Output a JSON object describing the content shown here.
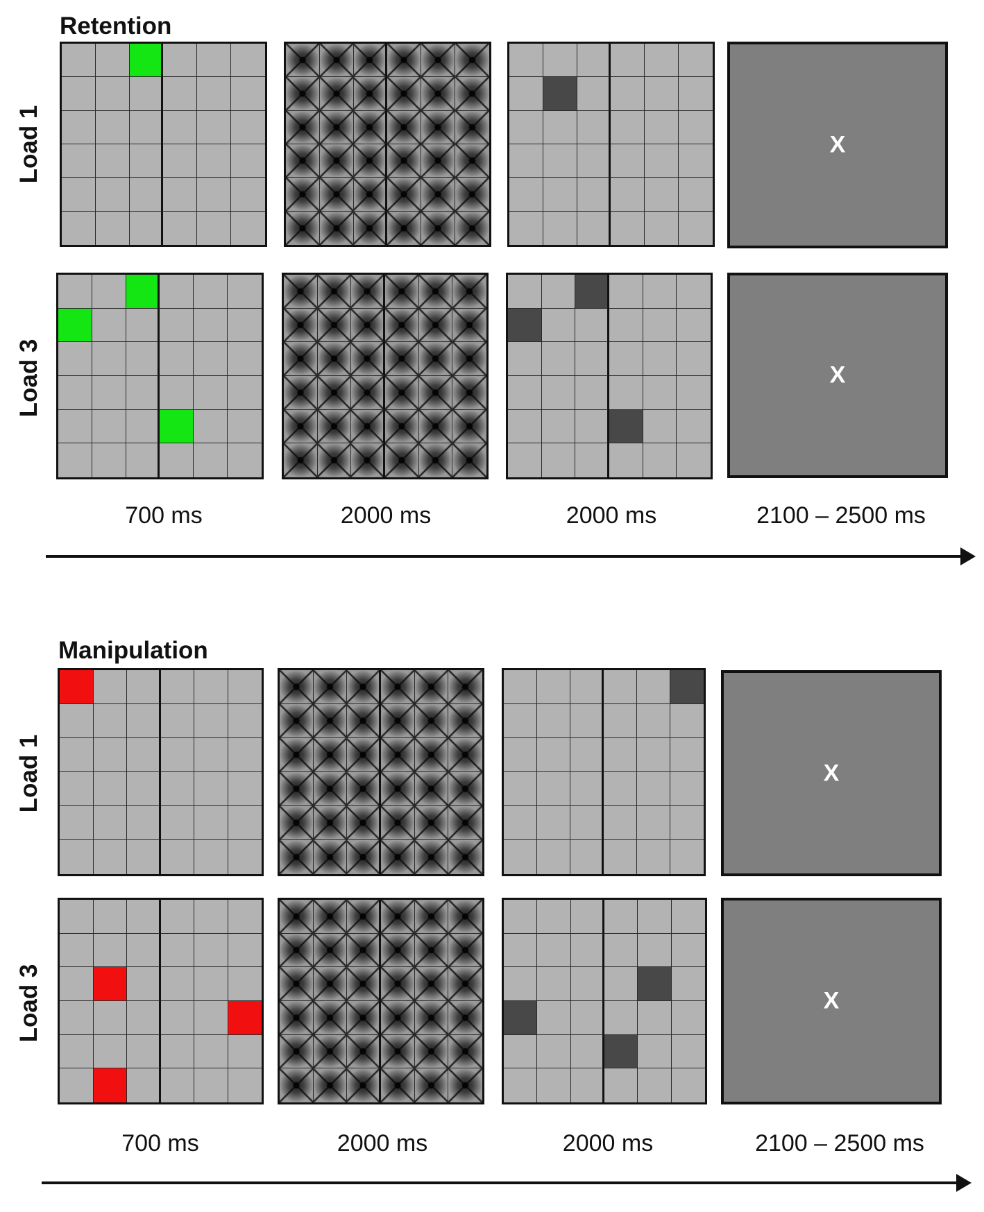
{
  "sections": [
    {
      "title": "Retention",
      "rows": [
        {
          "label": "Load 1",
          "encoding_cells": [
            [
              0,
              2
            ]
          ],
          "encoding_color": "#14e614",
          "probe_cells": [
            [
              1,
              1
            ]
          ]
        },
        {
          "label": "Load 3",
          "encoding_cells": [
            [
              0,
              2
            ],
            [
              1,
              0
            ],
            [
              4,
              3
            ]
          ],
          "encoding_color": "#14e614",
          "probe_cells": [
            [
              0,
              2
            ],
            [
              1,
              0
            ],
            [
              4,
              3
            ]
          ]
        }
      ],
      "durations": [
        "700 ms",
        "2000 ms",
        "2000 ms",
        "2100 – 2500 ms"
      ],
      "fixation_symbol": "X"
    },
    {
      "title": "Manipulation",
      "rows": [
        {
          "label": "Load 1",
          "encoding_cells": [
            [
              0,
              0
            ]
          ],
          "encoding_color": "#f20f0f",
          "probe_cells": [
            [
              0,
              5
            ]
          ]
        },
        {
          "label": "Load 3",
          "encoding_cells": [
            [
              2,
              1
            ],
            [
              3,
              5
            ],
            [
              5,
              1
            ]
          ],
          "encoding_color": "#f20f0f",
          "probe_cells": [
            [
              2,
              4
            ],
            [
              3,
              0
            ],
            [
              4,
              3
            ]
          ]
        }
      ],
      "durations": [
        "700 ms",
        "2000 ms",
        "2000 ms",
        "2100 – 2500 ms"
      ],
      "fixation_symbol": "X"
    }
  ],
  "colors": {
    "cell": "#b3b3b3",
    "probe": "#484848",
    "fixation_background": "#7f7f7f",
    "border": "#111111"
  }
}
